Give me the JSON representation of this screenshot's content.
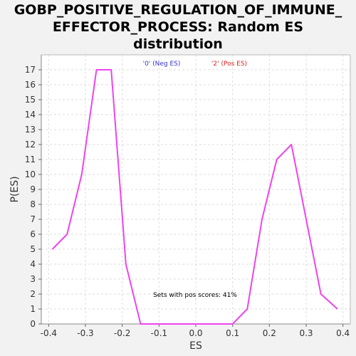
{
  "title_lines": [
    "GOBP_POSITIVE_REGULATION_OF_IMMUNE_",
    "EFFECTOR_PROCESS: Random ES",
    "distribution"
  ],
  "legend": [
    {
      "label": "'0' (Neg ES)",
      "color": "#3333cc"
    },
    {
      "label": "'2' (Pos ES)",
      "color": "#dd2222"
    }
  ],
  "annotation": "Sets with pos scores: 41%",
  "chart_data": {
    "type": "line",
    "title": "GOBP_POSITIVE_REGULATION_OF_IMMUNE_EFFECTOR_PROCESS: Random ES distribution",
    "xlabel": "ES",
    "ylabel": "P(ES)",
    "xlim": [
      -0.42,
      0.42
    ],
    "ylim": [
      0,
      18
    ],
    "xticks": [
      -0.4,
      -0.3,
      -0.2,
      -0.1,
      0.0,
      0.1,
      0.2,
      0.3,
      0.4
    ],
    "xtick_labels": [
      "-0.4",
      "-0.3",
      "-0.2",
      "-0.1",
      "0.0",
      "0.1",
      "0.2",
      "0.3",
      "0.4"
    ],
    "yticks": [
      0,
      1,
      2,
      3,
      4,
      5,
      6,
      7,
      8,
      9,
      10,
      11,
      12,
      13,
      14,
      15,
      16,
      17
    ],
    "grid": true,
    "line_color": "#ee44ee",
    "series": [
      {
        "x": [
          -0.39,
          -0.35,
          -0.31,
          -0.27,
          -0.23,
          -0.19,
          -0.15,
          -0.11,
          -0.07,
          -0.03,
          0.01,
          0.06,
          0.1,
          0.14,
          0.18,
          0.22,
          0.26,
          0.3,
          0.34,
          0.385
        ],
        "y": [
          5,
          6,
          10,
          17,
          17,
          4,
          0,
          0,
          0,
          0,
          0,
          0,
          0,
          1,
          7,
          11,
          12,
          7,
          2,
          1
        ]
      }
    ]
  }
}
